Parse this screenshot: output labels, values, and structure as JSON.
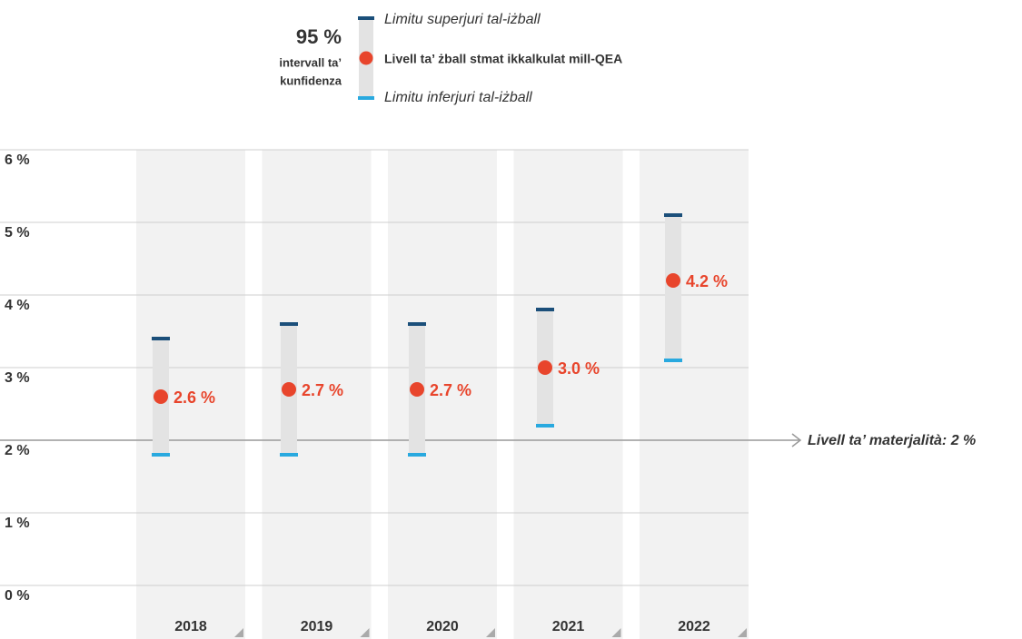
{
  "chart_data": {
    "type": "errorrange",
    "legend": {
      "confidence_title": "95 %",
      "confidence_lines": [
        "intervall ta’",
        "kunfidenza"
      ],
      "upper_label": "Limitu superjuri tal-iżball",
      "value_label": "Livell ta’ żball stmat ikkalkulat mill-QEA",
      "lower_label": "Limitu inferjuri tal-iżball"
    },
    "categories": [
      "2018",
      "2019",
      "2020",
      "2021",
      "2022"
    ],
    "values": [
      2.6,
      2.7,
      2.7,
      3.0,
      4.2
    ],
    "value_labels": [
      "2.6 %",
      "2.7 %",
      "2.7 %",
      "3.0 %",
      "4.2 %"
    ],
    "upper": [
      3.4,
      3.6,
      3.6,
      3.8,
      5.1
    ],
    "lower": [
      1.8,
      1.8,
      1.8,
      2.2,
      3.1
    ],
    "colors": {
      "value": "#e8452c",
      "upper": "#1b4f7a",
      "lower": "#29a9df",
      "range": "#e3e3e3"
    },
    "threshold": {
      "value": 2,
      "label": "Livell ta’ materjalità: 2 %"
    },
    "ylim": [
      0,
      6
    ],
    "yticks": [
      {
        "value": 0,
        "label": "0 %"
      },
      {
        "value": 1,
        "label": "1 %"
      },
      {
        "value": 2,
        "label": "2 %"
      },
      {
        "value": 3,
        "label": "3 %"
      },
      {
        "value": 4,
        "label": "4 %"
      },
      {
        "value": 5,
        "label": "5 %"
      },
      {
        "value": 6,
        "label": "6 %"
      }
    ],
    "grid": true
  }
}
